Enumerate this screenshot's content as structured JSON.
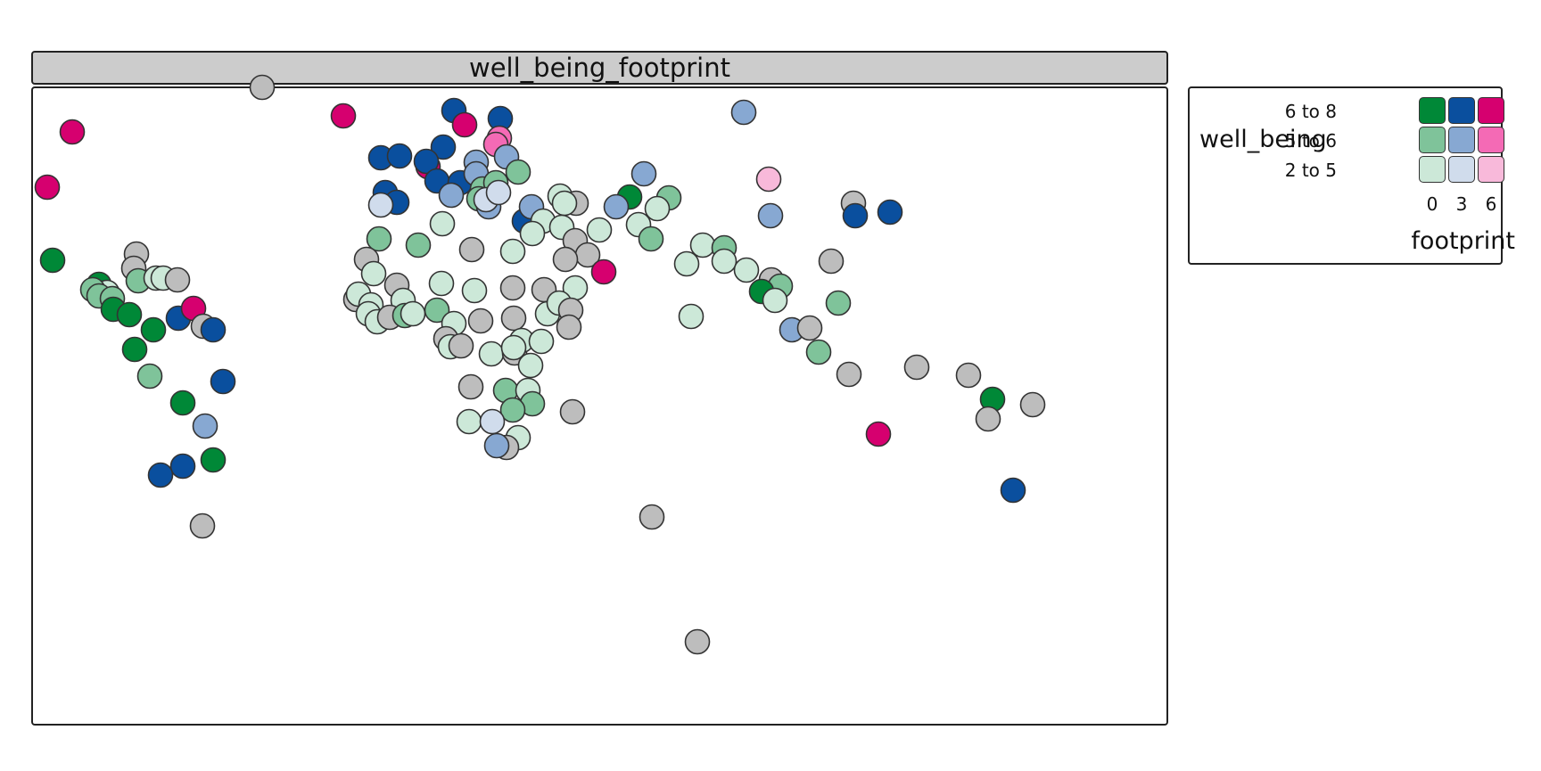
{
  "title": "well_being_footprint",
  "legend": {
    "y_title": "well_being",
    "x_title": "footprint",
    "rows": [
      "6 to 8",
      "5 to 6",
      "2 to 5"
    ],
    "cols": [
      "0",
      "3",
      "6"
    ],
    "colors": [
      [
        "#008837",
        "#0a4f9e",
        "#d6006f"
      ],
      [
        "#7fc39a",
        "#87a8d2",
        "#f46ab5"
      ],
      [
        "#cce8d8",
        "#d0dcec",
        "#f8b9da"
      ]
    ],
    "missing_color": "#bdbdbd"
  },
  "points": [
    [
      294,
      98,
      "x"
    ],
    [
      385,
      130,
      "p"
    ],
    [
      81,
      148,
      "p"
    ],
    [
      53,
      210,
      "p"
    ],
    [
      509,
      124,
      "b"
    ],
    [
      521,
      140,
      "p"
    ],
    [
      561,
      133,
      "b"
    ],
    [
      834,
      126,
      "lb"
    ],
    [
      427,
      177,
      "b"
    ],
    [
      448,
      175,
      "b"
    ],
    [
      497,
      165,
      "b"
    ],
    [
      480,
      187,
      "p"
    ],
    [
      478,
      181,
      "b"
    ],
    [
      490,
      203,
      "b"
    ],
    [
      516,
      205,
      "b"
    ],
    [
      534,
      182,
      "lb"
    ],
    [
      534,
      195,
      "lb"
    ],
    [
      560,
      155,
      "pk"
    ],
    [
      556,
      162,
      "pk"
    ],
    [
      568,
      176,
      "lb"
    ],
    [
      581,
      193,
      "lg"
    ],
    [
      541,
      212,
      "lg"
    ],
    [
      556,
      205,
      "lg"
    ],
    [
      506,
      219,
      "lb"
    ],
    [
      537,
      223,
      "lg"
    ],
    [
      548,
      232,
      "lb"
    ],
    [
      545,
      224,
      "vlb"
    ],
    [
      559,
      216,
      "vlb"
    ],
    [
      432,
      216,
      "b"
    ],
    [
      445,
      227,
      "b"
    ],
    [
      427,
      230,
      "vlb"
    ],
    [
      862,
      201,
      "vlp"
    ],
    [
      722,
      195,
      "lb"
    ],
    [
      706,
      221,
      "g"
    ],
    [
      750,
      222,
      "lg"
    ],
    [
      691,
      232,
      "lb"
    ],
    [
      737,
      234,
      "vlg"
    ],
    [
      864,
      242,
      "lb"
    ],
    [
      957,
      228,
      "x"
    ],
    [
      959,
      242,
      "b"
    ],
    [
      998,
      238,
      "b"
    ],
    [
      588,
      248,
      "b"
    ],
    [
      596,
      232,
      "lb"
    ],
    [
      628,
      220,
      "vlg"
    ],
    [
      646,
      228,
      "x"
    ],
    [
      633,
      228,
      "vlg"
    ],
    [
      609,
      248,
      "vlg"
    ],
    [
      630,
      255,
      "vlg"
    ],
    [
      597,
      262,
      "vlg"
    ],
    [
      672,
      258,
      "vlg"
    ],
    [
      716,
      252,
      "vlg"
    ],
    [
      730,
      268,
      "lg"
    ],
    [
      645,
      270,
      "x"
    ],
    [
      496,
      251,
      "vlg"
    ],
    [
      425,
      268,
      "lg"
    ],
    [
      469,
      275,
      "lg"
    ],
    [
      529,
      280,
      "x"
    ],
    [
      575,
      282,
      "vlg"
    ],
    [
      659,
      286,
      "x"
    ],
    [
      634,
      291,
      "x"
    ],
    [
      677,
      305,
      "p"
    ],
    [
      788,
      275,
      "vlg"
    ],
    [
      812,
      278,
      "lg"
    ],
    [
      812,
      293,
      "vlg"
    ],
    [
      770,
      296,
      "vlg"
    ],
    [
      837,
      303,
      "vlg"
    ],
    [
      865,
      314,
      "x"
    ],
    [
      875,
      321,
      "lg"
    ],
    [
      854,
      327,
      "g"
    ],
    [
      869,
      337,
      "vlg"
    ],
    [
      932,
      293,
      "x"
    ],
    [
      940,
      340,
      "lg"
    ],
    [
      153,
      285,
      "x"
    ],
    [
      150,
      301,
      "x"
    ],
    [
      155,
      315,
      "lg"
    ],
    [
      175,
      312,
      "vlg"
    ],
    [
      183,
      312,
      "vlg"
    ],
    [
      199,
      314,
      "x"
    ],
    [
      59,
      292,
      "g"
    ],
    [
      111,
      319,
      "g"
    ],
    [
      120,
      328,
      "vlg"
    ],
    [
      104,
      325,
      "lg"
    ],
    [
      111,
      332,
      "lg"
    ],
    [
      126,
      335,
      "lg"
    ],
    [
      127,
      347,
      "g"
    ],
    [
      145,
      353,
      "g"
    ],
    [
      172,
      370,
      "g"
    ],
    [
      200,
      357,
      "b"
    ],
    [
      217,
      346,
      "p"
    ],
    [
      228,
      366,
      "x"
    ],
    [
      239,
      370,
      "b"
    ],
    [
      151,
      392,
      "g"
    ],
    [
      168,
      422,
      "lg"
    ],
    [
      250,
      428,
      "b"
    ],
    [
      205,
      452,
      "g"
    ],
    [
      230,
      478,
      "lb"
    ],
    [
      239,
      516,
      "g"
    ],
    [
      205,
      523,
      "b"
    ],
    [
      180,
      533,
      "b"
    ],
    [
      227,
      590,
      "x"
    ],
    [
      411,
      291,
      "x"
    ],
    [
      419,
      307,
      "vlg"
    ],
    [
      445,
      320,
      "x"
    ],
    [
      495,
      318,
      "vlg"
    ],
    [
      532,
      326,
      "vlg"
    ],
    [
      575,
      323,
      "x"
    ],
    [
      610,
      325,
      "x"
    ],
    [
      645,
      323,
      "vlg"
    ],
    [
      399,
      336,
      "x"
    ],
    [
      402,
      330,
      "vlg"
    ],
    [
      452,
      337,
      "vlg"
    ],
    [
      416,
      342,
      "vlg"
    ],
    [
      413,
      352,
      "vlg"
    ],
    [
      423,
      361,
      "vlg"
    ],
    [
      437,
      356,
      "x"
    ],
    [
      454,
      354,
      "lg"
    ],
    [
      463,
      352,
      "vlg"
    ],
    [
      490,
      348,
      "lg"
    ],
    [
      509,
      363,
      "vlg"
    ],
    [
      539,
      360,
      "x"
    ],
    [
      576,
      357,
      "x"
    ],
    [
      614,
      352,
      "vlg"
    ],
    [
      627,
      340,
      "vlg"
    ],
    [
      640,
      348,
      "x"
    ],
    [
      638,
      367,
      "x"
    ],
    [
      500,
      380,
      "x"
    ],
    [
      505,
      389,
      "vlg"
    ],
    [
      517,
      388,
      "x"
    ],
    [
      551,
      397,
      "vlg"
    ],
    [
      577,
      396,
      "x"
    ],
    [
      585,
      382,
      "vlg"
    ],
    [
      607,
      383,
      "vlg"
    ],
    [
      576,
      390,
      "vlg"
    ],
    [
      595,
      410,
      "vlg"
    ],
    [
      528,
      434,
      "x"
    ],
    [
      567,
      438,
      "lg"
    ],
    [
      592,
      438,
      "vlg"
    ],
    [
      597,
      453,
      "lg"
    ],
    [
      575,
      460,
      "lg"
    ],
    [
      642,
      462,
      "x"
    ],
    [
      526,
      473,
      "vlg"
    ],
    [
      552,
      473,
      "vlb"
    ],
    [
      581,
      491,
      "vlg"
    ],
    [
      568,
      502,
      "x"
    ],
    [
      557,
      500,
      "lb"
    ],
    [
      775,
      355,
      "vlg"
    ],
    [
      888,
      370,
      "lb"
    ],
    [
      908,
      368,
      "x"
    ],
    [
      918,
      395,
      "lg"
    ],
    [
      952,
      420,
      "x"
    ],
    [
      1028,
      412,
      "x"
    ],
    [
      1086,
      421,
      "x"
    ],
    [
      1113,
      448,
      "g"
    ],
    [
      1108,
      470,
      "x"
    ],
    [
      1158,
      454,
      "x"
    ],
    [
      985,
      487,
      "p"
    ],
    [
      1136,
      550,
      "b"
    ],
    [
      731,
      580,
      "x"
    ],
    [
      782,
      720,
      "x"
    ]
  ]
}
